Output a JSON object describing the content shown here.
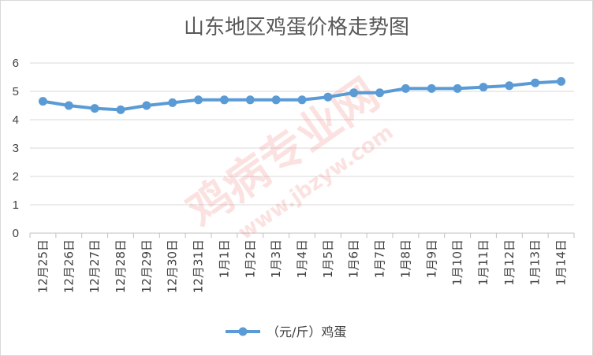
{
  "chart_data": {
    "type": "line",
    "title": "山东地区鸡蛋价格走势图",
    "categories": [
      "12月25日",
      "12月26日",
      "12月27日",
      "12月28日",
      "12月29日",
      "12月30日",
      "12月31日",
      "1月1日",
      "1月2日",
      "1月3日",
      "1月4日",
      "1月5日",
      "1月6日",
      "1月7日",
      "1月8日",
      "1月9日",
      "1月10日",
      "1月11日",
      "1月12日",
      "1月13日",
      "1月14日"
    ],
    "series": [
      {
        "name": "（元/斤）鸡蛋",
        "values": [
          4.65,
          4.5,
          4.4,
          4.35,
          4.5,
          4.6,
          4.7,
          4.7,
          4.7,
          4.7,
          4.7,
          4.8,
          4.95,
          4.95,
          5.1,
          5.1,
          5.1,
          5.15,
          5.2,
          5.3,
          5.35
        ],
        "color": "#5b9bd5"
      }
    ],
    "yticks": [
      0,
      1,
      2,
      3,
      4,
      5,
      6
    ],
    "ylim": [
      0,
      6
    ],
    "grid": true,
    "legend": "bottom",
    "xlabel": "",
    "ylabel": ""
  },
  "watermark": {
    "text": "鸡病专业网",
    "url": "www.jbzyw.com",
    "color": "#e8504a"
  }
}
